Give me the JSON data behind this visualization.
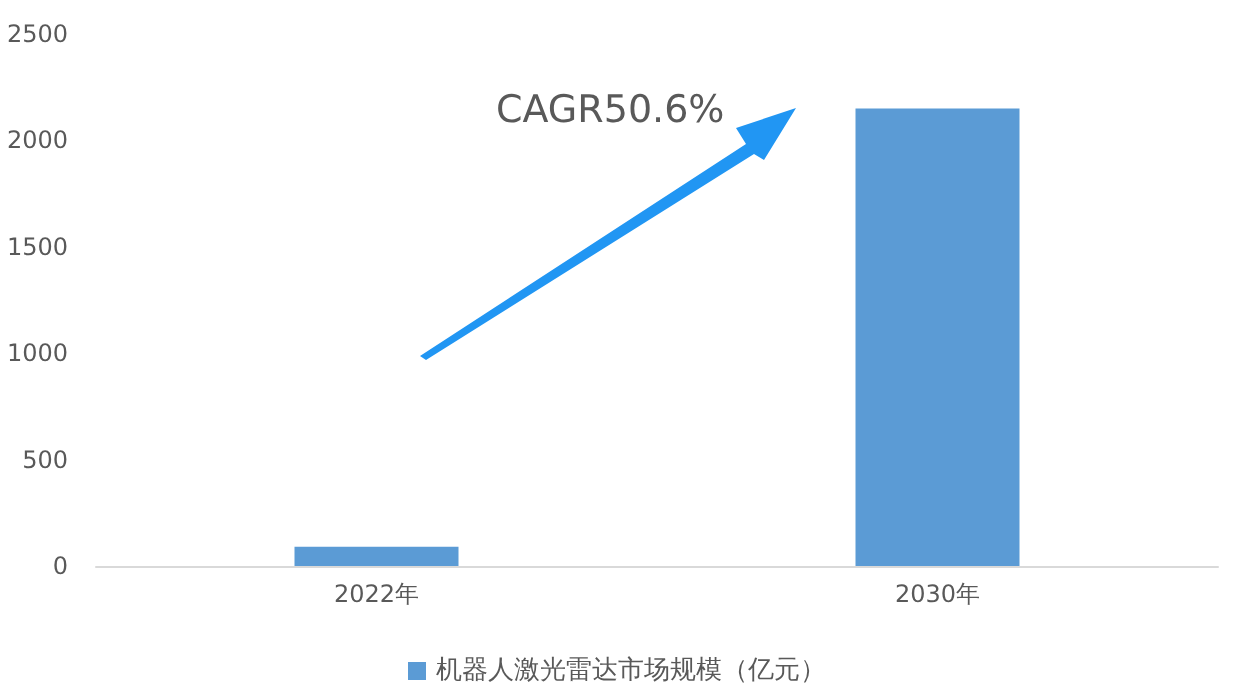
{
  "chart_data": {
    "type": "bar",
    "categories": [
      "2022年",
      "2030年"
    ],
    "series": [
      {
        "name": "机器人激光雷达市场规模（亿元）",
        "color": "#5b9bd5",
        "values": [
          90,
          2150
        ]
      }
    ],
    "ylim": [
      0,
      2500
    ],
    "yticks": [
      0,
      500,
      1000,
      1500,
      2000,
      2500
    ],
    "grid": false,
    "legend": "bottom",
    "annotations": [
      "CAGR50.6%"
    ]
  }
}
